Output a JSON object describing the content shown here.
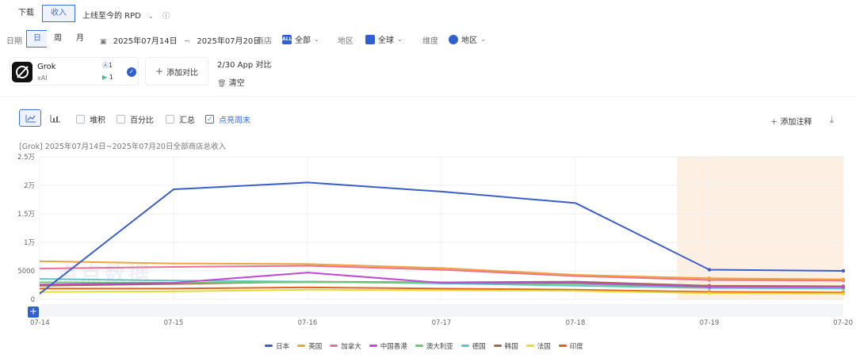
{
  "metric_toggle": {
    "download_label": "下载",
    "revenue_label": "收入",
    "range_label": "上线至今的 RPD"
  },
  "date_filter": {
    "label": "日期",
    "granularity": [
      "日",
      "周",
      "月"
    ],
    "start": "2025年07月14日",
    "separator": "~",
    "end": "2025年07月20日"
  },
  "store_filter": {
    "label": "商店",
    "icon_text": "ALL",
    "value": "全部"
  },
  "region_filter": {
    "label": "地区",
    "value": "全球"
  },
  "dimension_filter": {
    "label": "维度",
    "value": "地区"
  },
  "app": {
    "name": "Grok",
    "publisher": "xAI",
    "ios_count": "1",
    "android_count": "1"
  },
  "compare": {
    "add_label": "添加对比",
    "count_label": "2/30 App 对比",
    "clear_label": "清空"
  },
  "chart_toolbar": {
    "stack": "堆积",
    "percent": "百分比",
    "sum": "汇总",
    "weekend": "点亮周末",
    "add_note": "添加注释"
  },
  "chart_data": {
    "type": "line",
    "title": "[Grok] 2025年07月14日~2025年07月20日全部商店总收入",
    "x": [
      "07-14",
      "07-15",
      "07-16",
      "07-17",
      "07-18",
      "07-19",
      "07-20"
    ],
    "y_ticks": [
      "2.5万",
      "2万",
      "1.5万",
      "1万",
      "5000",
      "0"
    ],
    "ylim": [
      0,
      25000
    ],
    "weekend_highlight": [
      "07-19",
      "07-20"
    ],
    "legend_position": "bottom",
    "grid": true,
    "series": [
      {
        "name": "日本",
        "color": "#3a5fcd",
        "values": [
          1000,
          19300,
          20500,
          18900,
          16900,
          5200,
          5000
        ]
      },
      {
        "name": "英国",
        "color": "#f0a23c",
        "values": [
          6700,
          6300,
          6200,
          5500,
          4300,
          3700,
          3500
        ]
      },
      {
        "name": "加拿大",
        "color": "#ef6f8f",
        "values": [
          5400,
          5700,
          5900,
          5200,
          4100,
          3400,
          3300
        ]
      },
      {
        "name": "中国香港",
        "color": "#c149d6",
        "values": [
          2600,
          2900,
          4700,
          2900,
          2900,
          2200,
          2200
        ]
      },
      {
        "name": "澳大利亚",
        "color": "#6cc873",
        "values": [
          3000,
          2900,
          3000,
          3000,
          2700,
          2200,
          2100
        ]
      },
      {
        "name": "德国",
        "color": "#5ec6c4",
        "values": [
          3600,
          3300,
          3100,
          2800,
          2400,
          2000,
          1900
        ]
      },
      {
        "name": "韩国",
        "color": "#9c6b4b",
        "values": [
          2400,
          2700,
          3100,
          3000,
          3100,
          2400,
          2300
        ]
      },
      {
        "name": "法国",
        "color": "#e7d93c",
        "values": [
          1300,
          1400,
          1700,
          1600,
          1500,
          1100,
          1000
        ]
      },
      {
        "name": "印度",
        "color": "#e2621b",
        "values": [
          1900,
          1900,
          2100,
          1900,
          1700,
          1300,
          1200
        ]
      }
    ]
  }
}
